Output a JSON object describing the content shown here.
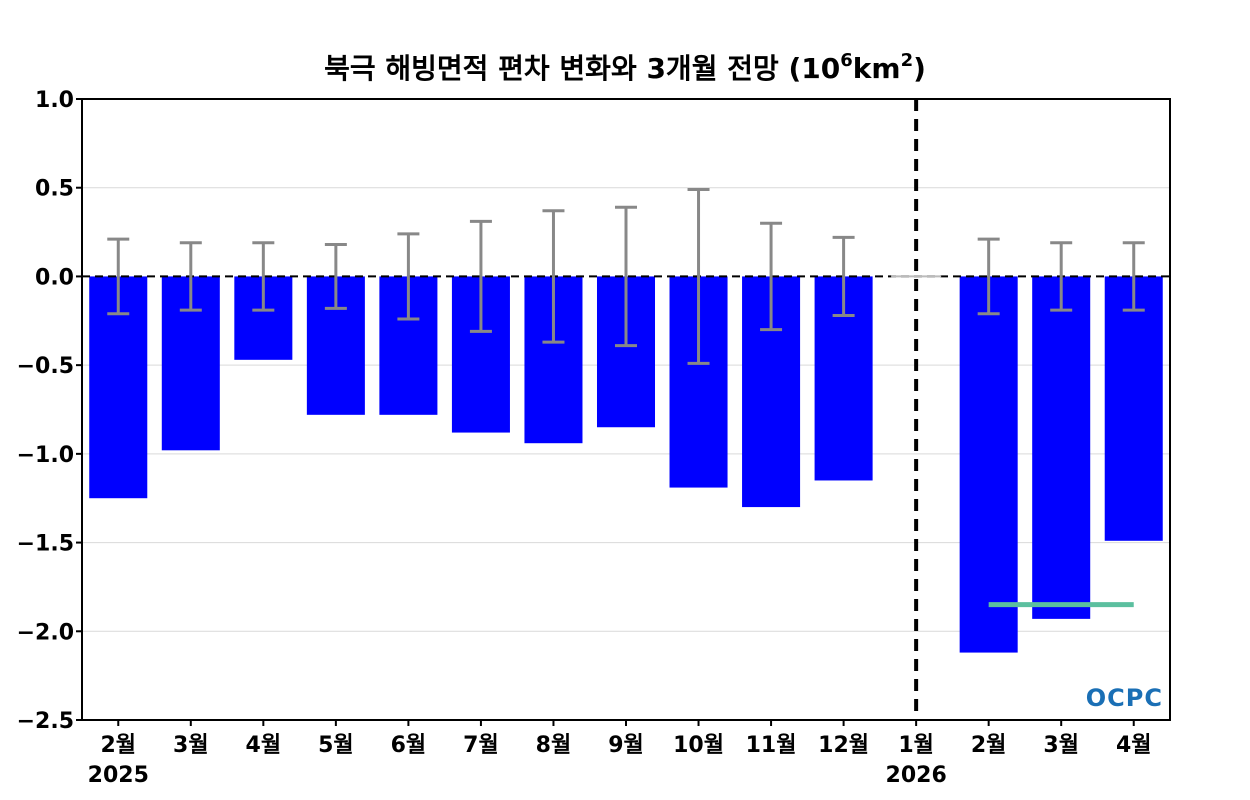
{
  "chart_data": {
    "type": "bar",
    "title": "북극 해빙면적 편차 변화와 3개월 전망",
    "title_unit_base": "(10",
    "title_unit_exp1": "6",
    "title_unit_mid": "km",
    "title_unit_exp2": "2",
    "title_unit_close": ")",
    "categories": [
      "2월",
      "3월",
      "4월",
      "5월",
      "6월",
      "7월",
      "8월",
      "9월",
      "10월",
      "11월",
      "12월",
      "1월",
      "2월",
      "3월",
      "4월"
    ],
    "values": [
      -1.25,
      -0.98,
      -0.47,
      -0.78,
      -0.78,
      -0.88,
      -0.94,
      -0.85,
      -1.19,
      -1.3,
      -1.15,
      null,
      -2.12,
      -1.93,
      -1.49
    ],
    "error_bars": [
      0.21,
      0.19,
      0.19,
      0.18,
      0.24,
      0.31,
      0.37,
      0.39,
      0.49,
      0.3,
      0.22,
      null,
      0.21,
      0.19,
      0.19
    ],
    "year_labels": [
      {
        "index": 0,
        "label": "2025"
      },
      {
        "index": 11,
        "label": "2026"
      }
    ],
    "forecast_divider_index": 11,
    "reference_line": {
      "value": -1.85,
      "from_index": 12,
      "to_index": 14
    },
    "ylim": [
      -2.5,
      1.0
    ],
    "yticks": [
      "1.0",
      "0.5",
      "0.0",
      "−0.5",
      "−1.0",
      "−1.5",
      "−2.0",
      "−2.5"
    ],
    "ytick_values": [
      1.0,
      0.5,
      0.0,
      -0.5,
      -1.0,
      -1.5,
      -2.0,
      -2.5
    ],
    "grid": true,
    "colors": {
      "bar": "#0000ff",
      "error_bar": "#888888",
      "reference_line": "#5bbf9f",
      "grid": "#d9d9d9",
      "zero_line": "#000000"
    }
  },
  "logo": {
    "text": "OCPC"
  }
}
